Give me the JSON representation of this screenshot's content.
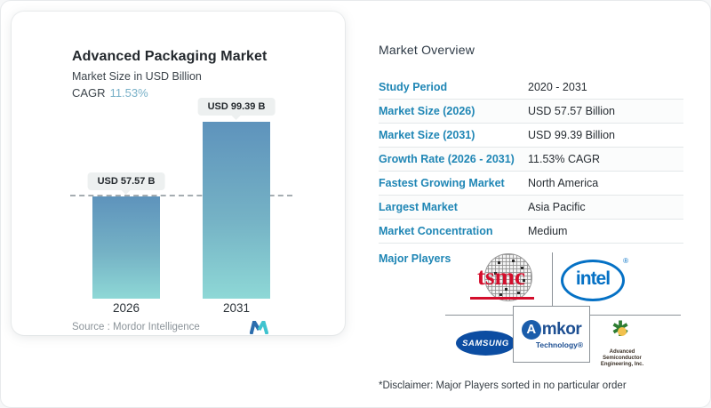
{
  "left_card": {
    "title": "Advanced Packaging Market",
    "subtitle": "Market Size in USD Billion",
    "cagr_label": "CAGR",
    "cagr_value": "11.53%",
    "source_label": "Source :",
    "source_value": "Mordor Intelligence"
  },
  "chart_data": {
    "type": "bar",
    "categories": [
      "2026",
      "2031"
    ],
    "values": [
      57.57,
      99.39
    ],
    "value_labels": [
      "USD 57.57 B",
      "USD 99.39 B"
    ],
    "title": "Advanced Packaging Market",
    "ylabel": "Market Size in USD Billion",
    "ylim": [
      0,
      99.39
    ],
    "reference_line": {
      "value": 57.57,
      "style": "dashed"
    },
    "bar_gradient_top": "#5e93bc",
    "bar_gradient_bottom": "#8ed8d6",
    "grid": false,
    "legend": "none"
  },
  "overview": {
    "title": "Market Overview",
    "rows": [
      {
        "label": "Study Period",
        "value": "2020 - 2031"
      },
      {
        "label": "Market Size (2026)",
        "value": "USD 57.57 Billion"
      },
      {
        "label": "Market Size (2031)",
        "value": "USD 99.39 Billion"
      },
      {
        "label": "Growth Rate (2026 - 2031)",
        "value": "11.53% CAGR"
      },
      {
        "label": "Fastest Growing Market",
        "value": "North America"
      },
      {
        "label": "Largest Market",
        "value": "Asia Pacific"
      },
      {
        "label": "Market Concentration",
        "value": "Medium"
      }
    ],
    "major_players_label": "Major Players",
    "major_players": {
      "tsmc": "tsmc",
      "intel": "intel",
      "intel_reg": "®",
      "samsung": "SAMSUNG",
      "amkor_a": "A",
      "amkor_word": "mkor",
      "amkor_tech": "Technology®",
      "ase_line1": "Advanced Semiconductor",
      "ase_line2": "Engineering, Inc.",
      "ase_burst": "✱"
    },
    "disclaimer": "*Disclaimer: Major Players sorted in no particular order"
  },
  "colors": {
    "accent_label_blue": "#1f86b5",
    "cagr_value_blue": "#79b1c8",
    "bar_top": "#5e93bc",
    "bar_bottom": "#8ed8d6",
    "tsmc_red": "#d40e2c",
    "intel_blue": "#0571c5",
    "samsung_blue": "#0c4da2",
    "amkor_navy": "#1d4f92",
    "ase_green": "#2e7d32",
    "mordor_blue": "#2b6dad",
    "mordor_teal": "#3fc3cf"
  }
}
